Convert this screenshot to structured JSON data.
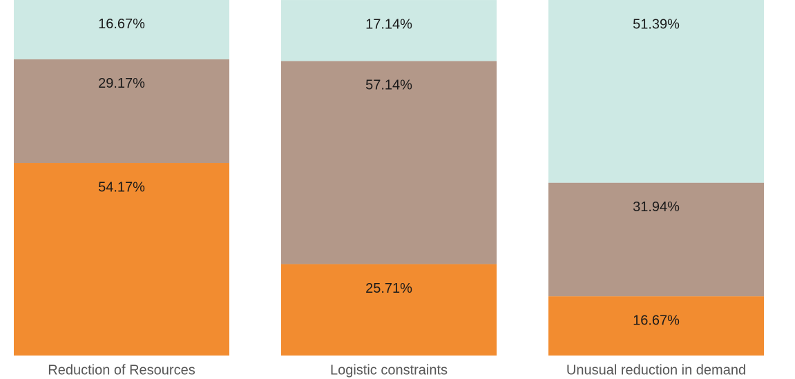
{
  "chart_data": {
    "type": "stacked_bar",
    "categories": [
      "Reduction of Resources",
      "Logistic constraints",
      "Unusual reduction in demand"
    ],
    "ylim": [
      0,
      100
    ],
    "series": [
      {
        "color": "#f28c30",
        "values": [
          54.17,
          25.71,
          16.67
        ],
        "value_labels": [
          "54.17%",
          "25.71%",
          "16.67%"
        ]
      },
      {
        "color": "#b39889",
        "values": [
          29.17,
          57.14,
          31.94
        ],
        "value_labels": [
          "29.17%",
          "57.14%",
          "31.94%"
        ]
      },
      {
        "color": "#cde9e4",
        "values": [
          16.67,
          17.14,
          51.39
        ],
        "value_labels": [
          "16.67%",
          "17.14%",
          "51.39%"
        ]
      }
    ]
  }
}
